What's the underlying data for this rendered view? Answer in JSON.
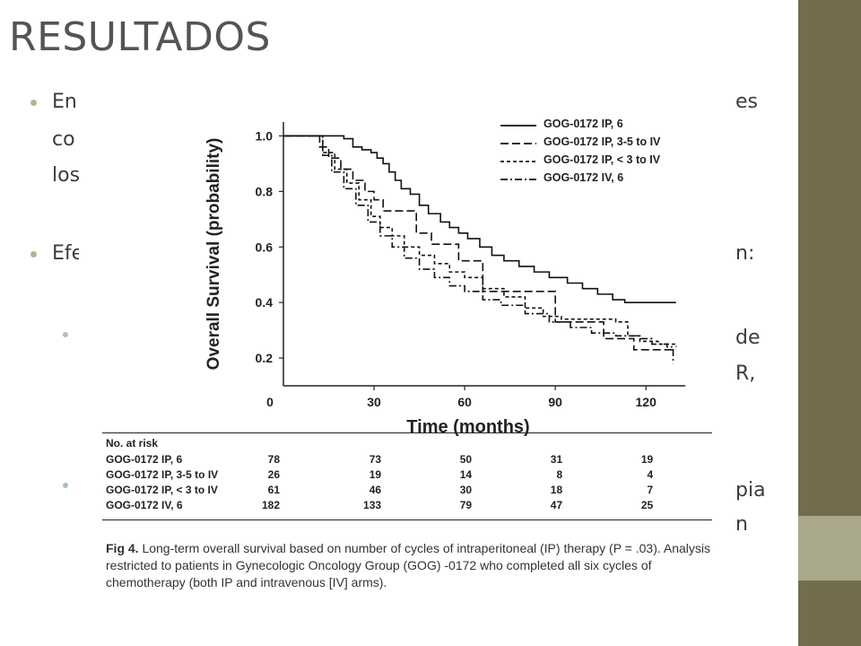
{
  "slide": {
    "title": "RESULTADOS",
    "bullets": [
      {
        "left": "En",
        "right": "es"
      },
      {
        "left": "co",
        "right": ""
      },
      {
        "left": "los",
        "right": ""
      },
      {
        "left": "Efe",
        "right": "n:"
      }
    ],
    "sub_bullets": [
      {
        "lines": [
          "de",
          "R,"
        ]
      },
      {
        "lines": [
          "pia",
          "n"
        ]
      }
    ],
    "accent_colors": {
      "band": "#736c4d",
      "band_light": "#aaa88a",
      "bullet": "#b5b38f"
    }
  },
  "chart_data": {
    "type": "line",
    "subtype": "kaplan-meier step",
    "xlabel": "Time (months)",
    "ylabel": "Overall Survival (probability)",
    "xticks": [
      0,
      30,
      60,
      90,
      120
    ],
    "yticks": [
      0.2,
      0.4,
      0.6,
      0.8,
      1.0
    ],
    "ytick_labels": [
      "0.2",
      "0.4",
      "0.6",
      "0.8",
      "1.0"
    ],
    "origin_label": "0",
    "xlim": [
      0,
      133
    ],
    "ylim": [
      0.1,
      1.05
    ],
    "legend_position": "top-right",
    "series": [
      {
        "name": "GOG-0172 IP, 6",
        "dash": "solid",
        "points": [
          [
            0,
            1.0
          ],
          [
            10,
            1.0
          ],
          [
            20,
            0.99
          ],
          [
            23,
            0.96
          ],
          [
            26,
            0.95
          ],
          [
            29,
            0.94
          ],
          [
            31,
            0.92
          ],
          [
            33,
            0.9
          ],
          [
            35,
            0.87
          ],
          [
            37,
            0.84
          ],
          [
            39,
            0.81
          ],
          [
            42,
            0.79
          ],
          [
            45,
            0.75
          ],
          [
            48,
            0.72
          ],
          [
            52,
            0.69
          ],
          [
            55,
            0.67
          ],
          [
            58,
            0.65
          ],
          [
            61,
            0.63
          ],
          [
            65,
            0.6
          ],
          [
            69,
            0.57
          ],
          [
            73,
            0.55
          ],
          [
            78,
            0.53
          ],
          [
            83,
            0.51
          ],
          [
            88,
            0.49
          ],
          [
            94,
            0.47
          ],
          [
            99,
            0.45
          ],
          [
            104,
            0.43
          ],
          [
            109,
            0.41
          ],
          [
            113,
            0.4
          ],
          [
            130,
            0.4
          ]
        ]
      },
      {
        "name": "GOG-0172 IP, 3-5 to IV",
        "dash": "long",
        "points": [
          [
            0,
            1.0
          ],
          [
            10,
            1.0
          ],
          [
            12,
            0.96
          ],
          [
            15,
            0.92
          ],
          [
            19,
            0.88
          ],
          [
            23,
            0.84
          ],
          [
            27,
            0.8
          ],
          [
            30,
            0.77
          ],
          [
            33,
            0.73
          ],
          [
            37,
            0.73
          ],
          [
            42,
            0.73
          ],
          [
            44,
            0.65
          ],
          [
            47,
            0.65
          ],
          [
            49,
            0.61
          ],
          [
            56,
            0.61
          ],
          [
            58,
            0.55
          ],
          [
            64,
            0.55
          ],
          [
            66,
            0.44
          ],
          [
            90,
            0.33
          ],
          [
            106,
            0.27
          ],
          [
            114,
            0.27
          ],
          [
            116,
            0.23
          ],
          [
            130,
            0.23
          ]
        ]
      },
      {
        "name": "GOG-0172 IP, < 3 to IV",
        "dash": "short",
        "points": [
          [
            0,
            1.0
          ],
          [
            10,
            1.0
          ],
          [
            13,
            0.94
          ],
          [
            17,
            0.88
          ],
          [
            21,
            0.83
          ],
          [
            25,
            0.77
          ],
          [
            29,
            0.71
          ],
          [
            32,
            0.67
          ],
          [
            36,
            0.64
          ],
          [
            40,
            0.6
          ],
          [
            45,
            0.57
          ],
          [
            50,
            0.54
          ],
          [
            55,
            0.51
          ],
          [
            60,
            0.49
          ],
          [
            66,
            0.45
          ],
          [
            73,
            0.42
          ],
          [
            80,
            0.38
          ],
          [
            86,
            0.35
          ],
          [
            92,
            0.34
          ],
          [
            100,
            0.34
          ],
          [
            110,
            0.33
          ],
          [
            114,
            0.28
          ],
          [
            118,
            0.26
          ],
          [
            124,
            0.25
          ],
          [
            130,
            0.24
          ]
        ]
      },
      {
        "name": "GOG-0172 IV, 6",
        "dash": "dashdot",
        "points": [
          [
            0,
            1.0
          ],
          [
            10,
            1.0
          ],
          [
            13,
            0.93
          ],
          [
            16,
            0.87
          ],
          [
            20,
            0.81
          ],
          [
            24,
            0.75
          ],
          [
            28,
            0.69
          ],
          [
            32,
            0.64
          ],
          [
            36,
            0.6
          ],
          [
            40,
            0.56
          ],
          [
            45,
            0.52
          ],
          [
            50,
            0.49
          ],
          [
            55,
            0.46
          ],
          [
            60,
            0.44
          ],
          [
            66,
            0.41
          ],
          [
            72,
            0.39
          ],
          [
            80,
            0.36
          ],
          [
            88,
            0.33
          ],
          [
            95,
            0.31
          ],
          [
            102,
            0.29
          ],
          [
            110,
            0.28
          ],
          [
            118,
            0.27
          ],
          [
            122,
            0.25
          ],
          [
            127,
            0.24
          ],
          [
            129,
            0.18
          ]
        ]
      }
    ],
    "risk_table": {
      "title": "No. at risk",
      "times": [
        0,
        30,
        60,
        90,
        120
      ],
      "rows": [
        {
          "label": "GOG-0172 IP, 6",
          "values": [
            "78",
            "73",
            "50",
            "31",
            "19"
          ]
        },
        {
          "label": "GOG-0172 IP, 3-5 to IV",
          "values": [
            "26",
            "19",
            "14",
            "8",
            "4"
          ]
        },
        {
          "label": "GOG-0172 IP, < 3 to IV",
          "values": [
            "61",
            "46",
            "30",
            "18",
            "7"
          ]
        },
        {
          "label": "GOG-0172 IV, 6",
          "values": [
            "182",
            "133",
            "79",
            "47",
            "25"
          ]
        }
      ]
    },
    "caption": {
      "label": "Fig 4.",
      "text": "Long-term overall survival based on number of cycles of intraperitoneal (IP) therapy (P = .03). Analysis restricted to patients in Gynecologic Oncology Group (GOG) -0172 who completed all six cycles of chemotherapy (both IP and intravenous [IV] arms)."
    }
  }
}
